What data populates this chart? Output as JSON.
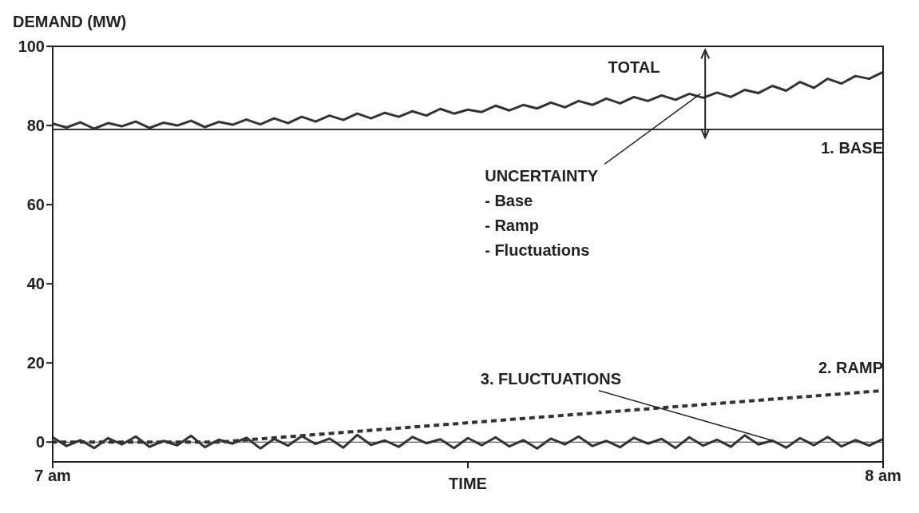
{
  "chart_data": {
    "type": "line",
    "ylabel": "DEMAND (MW)",
    "xlabel": "TIME",
    "x": [
      7,
      7.0167,
      7.0333,
      7.05,
      7.0667,
      7.0833,
      7.1,
      7.1167,
      7.1333,
      7.15,
      7.1667,
      7.1833,
      7.2,
      7.2167,
      7.2333,
      7.25,
      7.2667,
      7.2833,
      7.3,
      7.3167,
      7.3333,
      7.35,
      7.3667,
      7.3833,
      7.4,
      7.4167,
      7.4333,
      7.45,
      7.4667,
      7.4833,
      7.5,
      7.5167,
      7.5333,
      7.55,
      7.5667,
      7.5833,
      7.6,
      7.6167,
      7.6333,
      7.65,
      7.6667,
      7.6833,
      7.7,
      7.7167,
      7.7333,
      7.75,
      7.7667,
      7.7833,
      7.8,
      7.8167,
      7.8333,
      7.85,
      7.8667,
      7.8833,
      7.9,
      7.9167,
      7.9333,
      7.95,
      7.9667,
      7.9833,
      8
    ],
    "series": [
      {
        "name": "TOTAL",
        "color": "#333333",
        "values": [
          80.5,
          79.5,
          80.8,
          79.2,
          80.6,
          79.8,
          81,
          79.4,
          80.7,
          80,
          81.2,
          79.6,
          80.9,
          80.2,
          81.5,
          80.3,
          81.8,
          80.6,
          82.2,
          81,
          82.5,
          81.4,
          83,
          81.8,
          83.2,
          82.2,
          83.6,
          82.5,
          84.2,
          83,
          84,
          83.4,
          85,
          83.8,
          85.2,
          84.3,
          85.8,
          84.6,
          86.2,
          85.2,
          86.8,
          85.6,
          87.2,
          86.2,
          87.6,
          86.5,
          88,
          87,
          88.3,
          87.2,
          89,
          88.2,
          90,
          88.8,
          91,
          89.5,
          91.8,
          90.6,
          92.5,
          91.8,
          93.5
        ]
      },
      {
        "name": "1. BASE",
        "color": "#333333",
        "x": [
          7,
          8
        ],
        "values": [
          79,
          79
        ]
      },
      {
        "name": "2. RAMP",
        "color": "#333333",
        "line_style": "dotted",
        "x": [
          7,
          7.2,
          8
        ],
        "values": [
          0,
          0,
          13
        ]
      },
      {
        "name": "3. FLUCTUATIONS",
        "color": "#333333",
        "values": [
          1.2,
          -1,
          0.5,
          -1.5,
          1,
          -0.6,
          1.4,
          -1.2,
          0.3,
          -0.8,
          1.6,
          -1.3,
          0.6,
          -0.4,
          1.1,
          -1.6,
          0.8,
          -0.9,
          1.5,
          -0.5,
          0.9,
          -1.4,
          1.8,
          -0.7,
          0.4,
          -1.2,
          1.3,
          -0.3,
          0.7,
          -1.5,
          1,
          -0.8,
          1.2,
          -1.1,
          0.5,
          -1.6,
          0.9,
          -0.6,
          1.4,
          -1,
          0.3,
          -1.3,
          1.1,
          -0.4,
          0.8,
          -1.5,
          1.2,
          -0.9,
          0.6,
          -1.2,
          1.7,
          -0.6,
          0.4,
          -1.4,
          1,
          -0.8,
          1.3,
          -1.1,
          0.5,
          -0.9,
          0.8
        ]
      }
    ],
    "annotations": [
      {
        "text": "UNCERTAINTY\n- Base\n- Ramp\n- Fluctuations",
        "x": 7.78,
        "y": 88
      }
    ],
    "ref_lines": [
      {
        "axis": "y",
        "value": 0,
        "color": "#333333"
      }
    ],
    "xlim": [
      7,
      8
    ],
    "xticks": [
      {
        "value": 7,
        "label": "7 am"
      },
      {
        "value": 7.5,
        "label": null
      },
      {
        "value": 8,
        "label": "8 am"
      }
    ],
    "ylim": [
      -5,
      100
    ],
    "yticks": [
      0,
      20,
      40,
      60,
      80,
      100
    ],
    "grid": false,
    "legend": false,
    "marker": "none",
    "line_style": "solid"
  }
}
